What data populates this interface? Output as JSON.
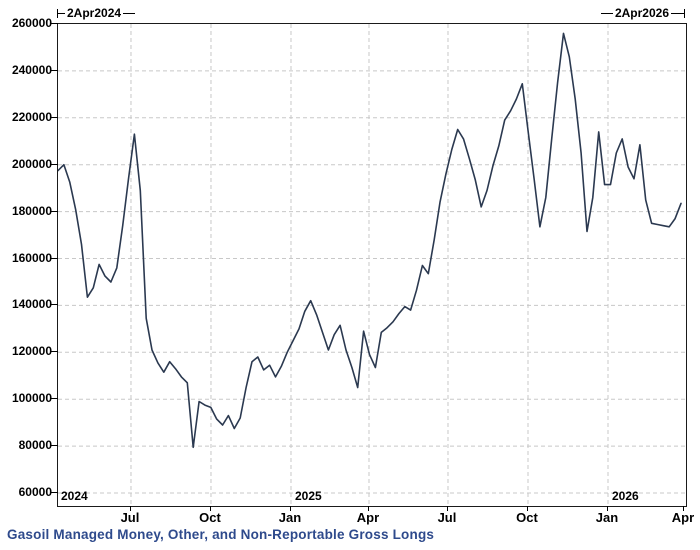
{
  "footer_title": "Gasoil Managed Money, Other, and Non-Reportable Gross Longs",
  "colors": {
    "line": "#2b3950",
    "grid": "#c8c8c8",
    "axis": "#1a1a1a",
    "title": "#2e4a8c",
    "background": "#ffffff"
  },
  "chart_data": {
    "type": "line",
    "title": "Gasoil Managed Money, Other, and Non-Reportable Gross Longs",
    "x_start_label": "2Apr2024",
    "x_end_label": "2Apr2026",
    "x_tick_labels": [
      "Jul",
      "Oct",
      "Jan",
      "Apr",
      "Jul",
      "Oct",
      "Jan",
      "Apr"
    ],
    "year_labels": [
      "2024",
      "2025",
      "2026"
    ],
    "y_ticks": [
      260000,
      240000,
      220000,
      200000,
      180000,
      160000,
      140000,
      120000,
      100000,
      80000,
      60000
    ],
    "ylim": [
      54500,
      260000
    ],
    "grid": true,
    "legend_position": "none",
    "series": [
      {
        "name": "Gasoil Managed Money, Other, and Non-Reportable Gross Longs",
        "values": [
          197500,
          200000,
          192500,
          181000,
          166000,
          143500,
          147500,
          157500,
          152500,
          150000,
          156000,
          174000,
          194000,
          213000,
          189000,
          134500,
          121000,
          115500,
          111500,
          116000,
          113000,
          109500,
          107000,
          79500,
          99000,
          97500,
          96500,
          91500,
          89000,
          93000,
          87500,
          92000,
          105000,
          116000,
          118000,
          112500,
          114500,
          109500,
          114000,
          120000,
          125000,
          130000,
          137500,
          142000,
          136000,
          128500,
          121000,
          127500,
          131500,
          121000,
          113500,
          105000,
          129000,
          119000,
          113500,
          128500,
          130500,
          133000,
          136500,
          139500,
          138000,
          146500,
          157000,
          153500,
          168000,
          184000,
          196000,
          206500,
          215000,
          211000,
          202500,
          193500,
          182000,
          189000,
          199500,
          208000,
          219000,
          223000,
          228000,
          234500,
          214000,
          194000,
          173500,
          186000,
          211000,
          235000,
          256000,
          246000,
          228000,
          205000,
          171500,
          186000,
          214000,
          191500,
          191500,
          205000,
          211000,
          199000,
          194000,
          208500,
          185000,
          175000,
          174500,
          174000,
          173500,
          177000,
          183500
        ]
      }
    ]
  }
}
